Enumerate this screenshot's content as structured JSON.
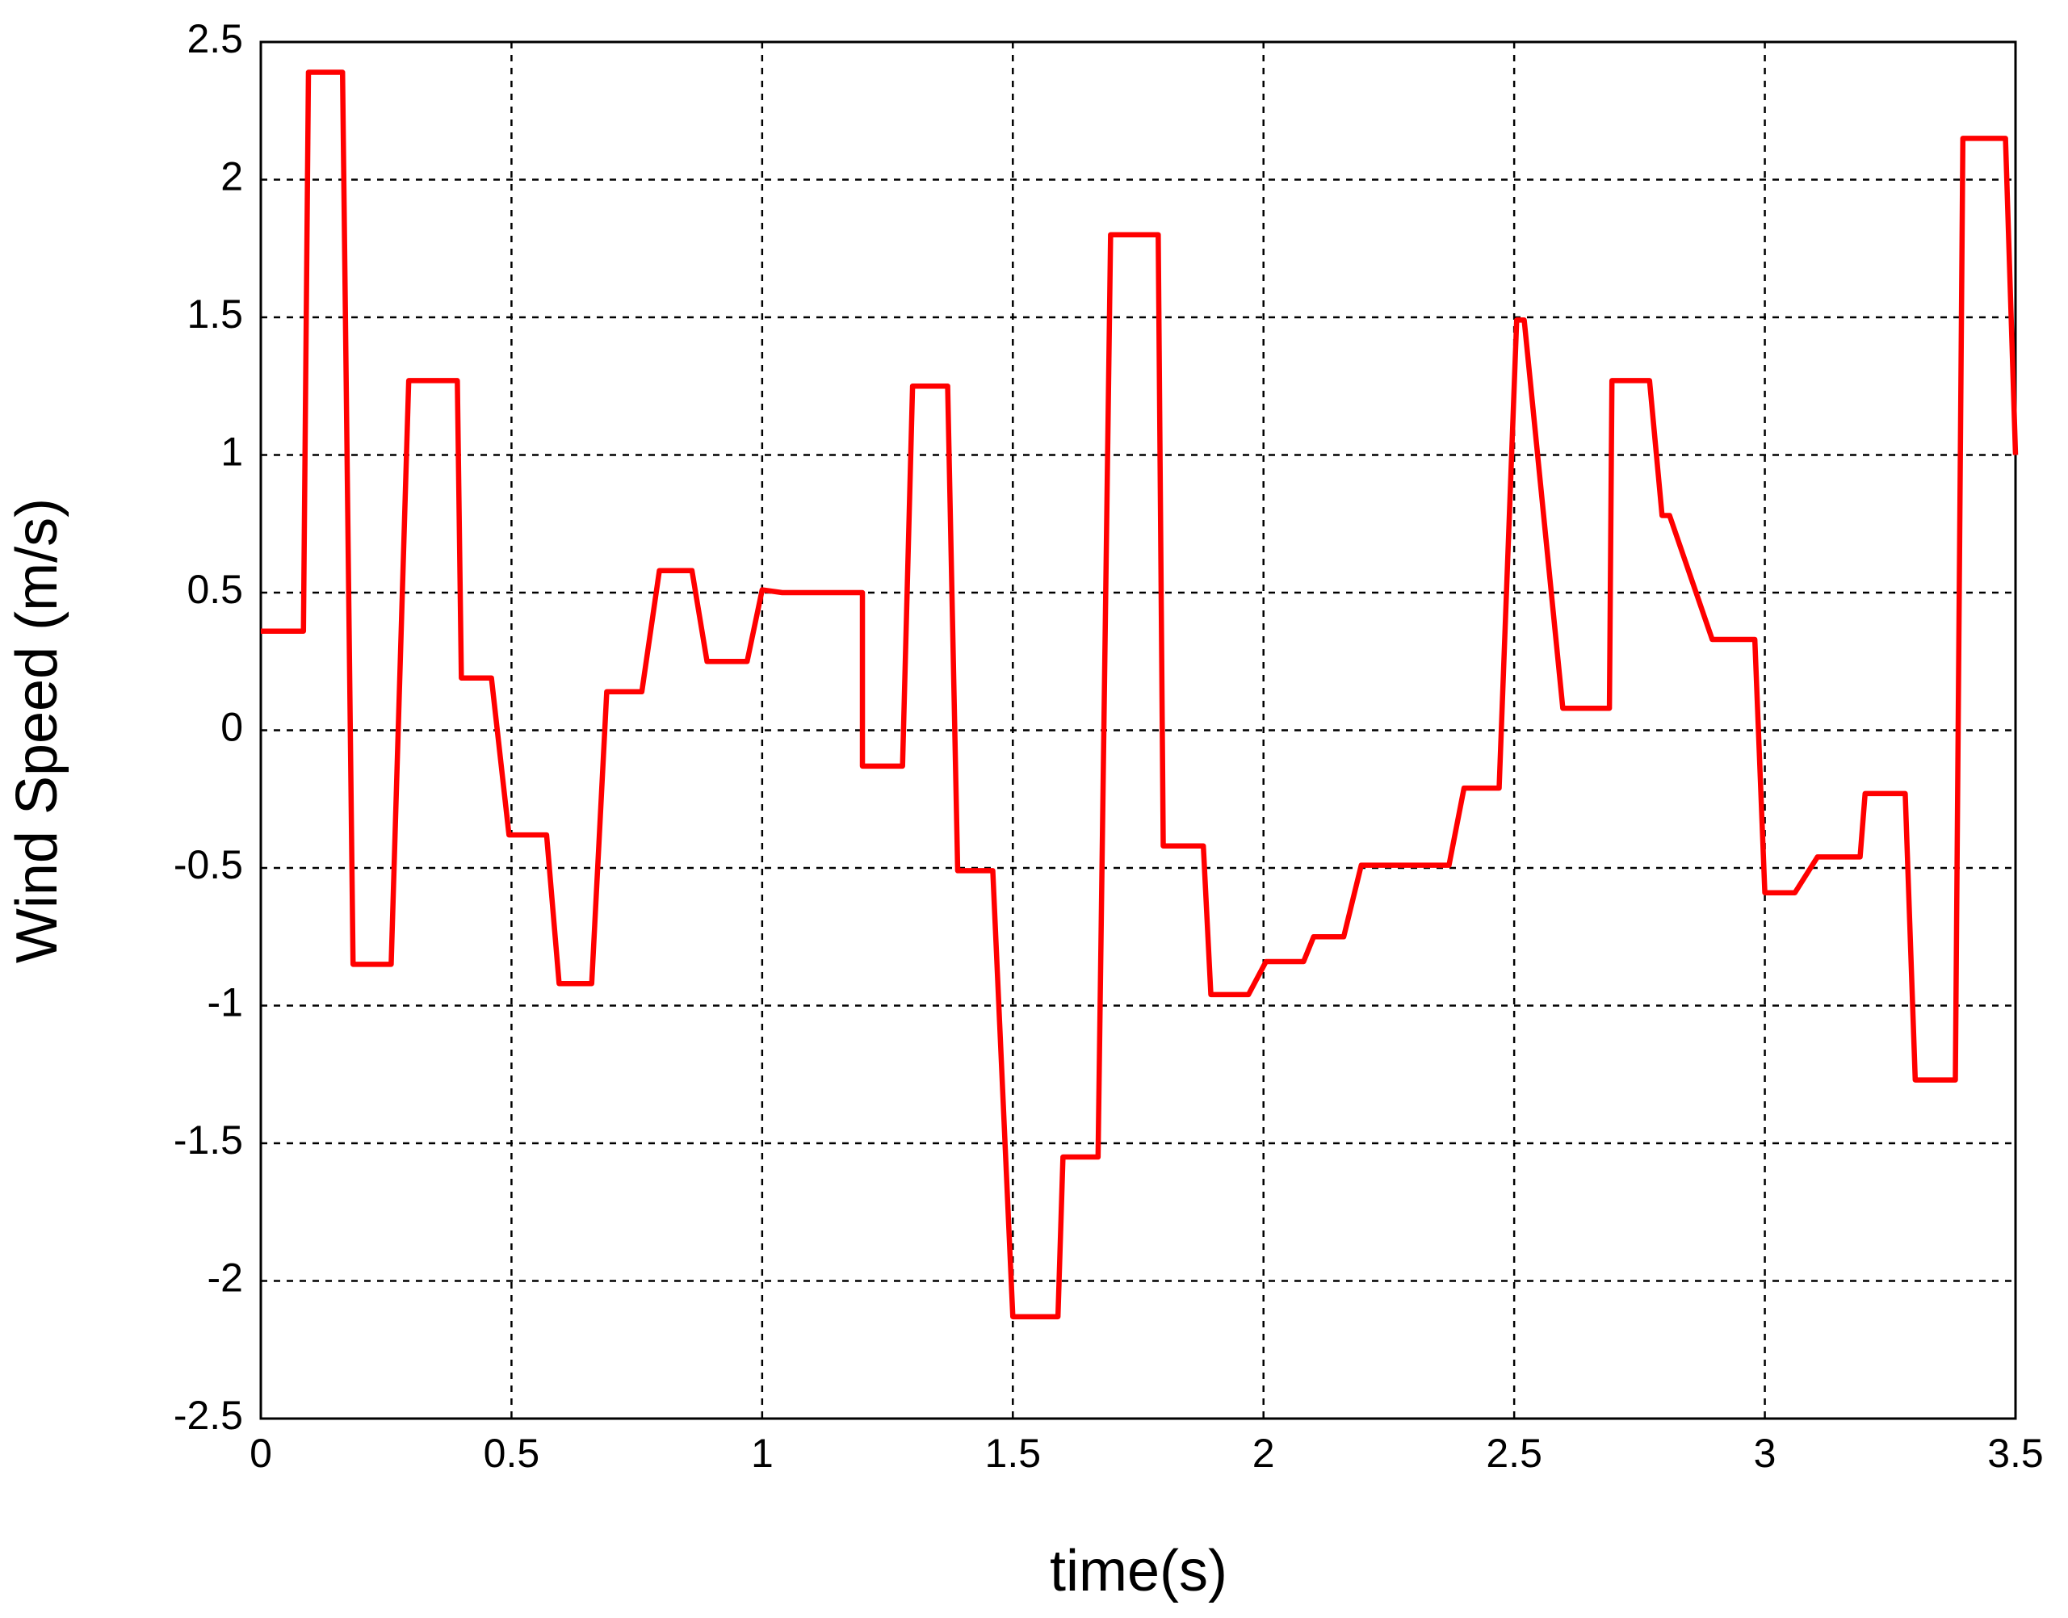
{
  "chart_data": {
    "type": "line",
    "xlabel": "time(s)",
    "ylabel": "Wind Speed (m/s)",
    "xlim": [
      0,
      3.5
    ],
    "ylim": [
      -2.5,
      2.5
    ],
    "xticks": [
      0,
      0.5,
      1,
      1.5,
      2,
      2.5,
      3,
      3.5
    ],
    "yticks": [
      -2.5,
      -2,
      -1.5,
      -1,
      -0.5,
      0,
      0.5,
      1,
      1.5,
      2,
      2.5
    ],
    "grid": true,
    "series": [
      {
        "name": "Wind Speed",
        "color": "#ff0000",
        "x": [
          0,
          0.085,
          0.095,
          0.163,
          0.184,
          0.26,
          0.295,
          0.392,
          0.4,
          0.46,
          0.495,
          0.57,
          0.595,
          0.66,
          0.69,
          0.76,
          0.795,
          0.86,
          0.89,
          0.97,
          1.0,
          1.04,
          1.2,
          1.2,
          1.28,
          1.3,
          1.37,
          1.39,
          1.46,
          1.5,
          1.59,
          1.6,
          1.67,
          1.695,
          1.79,
          1.8,
          1.88,
          1.895,
          1.97,
          2.005,
          2.08,
          2.1,
          2.16,
          2.195,
          2.37,
          2.4,
          2.47,
          2.505,
          2.52,
          2.597,
          2.69,
          2.695,
          2.77,
          2.795,
          2.81,
          2.895,
          2.98,
          3.0,
          3.06,
          3.105,
          3.19,
          3.2,
          3.28,
          3.3,
          3.38,
          3.395,
          3.48,
          3.5
        ],
        "values": [
          0.36,
          0.36,
          2.39,
          2.39,
          -0.85,
          -0.85,
          1.27,
          1.27,
          0.19,
          0.19,
          -0.38,
          -0.38,
          -0.92,
          -0.92,
          0.14,
          0.14,
          0.58,
          0.58,
          0.25,
          0.25,
          0.51,
          0.5,
          0.5,
          -0.13,
          -0.13,
          1.25,
          1.25,
          -0.51,
          -0.51,
          -2.13,
          -2.13,
          -1.55,
          -1.55,
          1.8,
          1.8,
          -0.42,
          -0.42,
          -0.96,
          -0.96,
          -0.84,
          -0.84,
          -0.75,
          -0.75,
          -0.49,
          -0.49,
          -0.21,
          -0.21,
          1.49,
          1.49,
          0.08,
          0.08,
          1.27,
          1.27,
          0.78,
          0.78,
          0.33,
          0.33,
          -0.59,
          -0.59,
          -0.46,
          -0.46,
          -0.23,
          -0.23,
          -1.27,
          -1.27,
          2.15,
          2.15,
          1.0
        ]
      }
    ]
  }
}
